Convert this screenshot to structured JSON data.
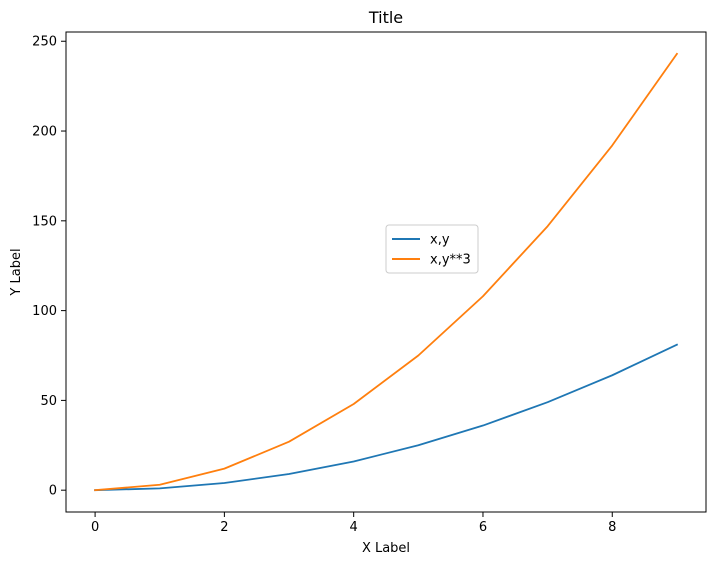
{
  "chart_data": {
    "type": "line",
    "title": "Title",
    "xlabel": "X Label",
    "ylabel": "Y Label",
    "xlim": [
      -0.45,
      9.45
    ],
    "ylim": [
      -12.15,
      255.15
    ],
    "xticks": [
      0,
      2,
      4,
      6,
      8
    ],
    "yticks": [
      0,
      50,
      100,
      150,
      200,
      250
    ],
    "grid": false,
    "legend_position": "center",
    "x": [
      0,
      1,
      2,
      3,
      4,
      5,
      6,
      7,
      8,
      9
    ],
    "series": [
      {
        "name": "x,y",
        "color": "#1f77b4",
        "values": [
          0,
          1,
          4,
          9,
          16,
          25,
          36,
          49,
          64,
          81
        ]
      },
      {
        "name": "x,y**3",
        "color": "#ff7f0e",
        "values": [
          0,
          3,
          12,
          27,
          48,
          75,
          108,
          147,
          192,
          243
        ]
      }
    ]
  }
}
